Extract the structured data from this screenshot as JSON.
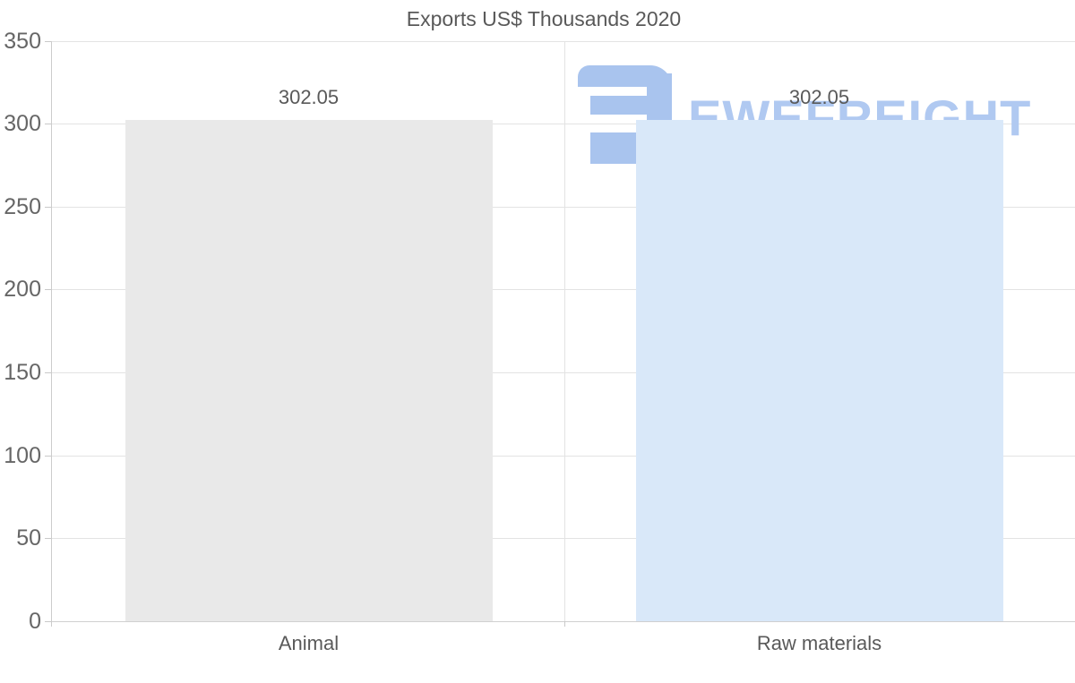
{
  "chart_data": {
    "type": "bar",
    "title": "Exports US$ Thousands 2020",
    "categories": [
      "Animal",
      "Raw materials"
    ],
    "values": [
      302.05,
      302.05
    ],
    "value_labels": [
      "302.05",
      "302.05"
    ],
    "bar_colors": [
      "#e9e9e9",
      "#d9e8f9"
    ],
    "ylim": [
      0,
      350
    ],
    "ytick_step": 50,
    "yticks": [
      350,
      300,
      250,
      200,
      150,
      100,
      50,
      0
    ],
    "xlabel": "",
    "ylabel": "",
    "grid": true,
    "legend": false
  },
  "watermark": {
    "text": "EWEFREIGHT",
    "icon": "ewefreight-logo-icon",
    "icon_color": "#a9c4ee",
    "text_color": "#b0c9f1"
  },
  "colors": {
    "background": "#ffffff",
    "grid": "#e3e3e3",
    "axis": "#cccccc",
    "title_text": "#595959",
    "tick_text": "#666666",
    "label_text": "#595959"
  }
}
